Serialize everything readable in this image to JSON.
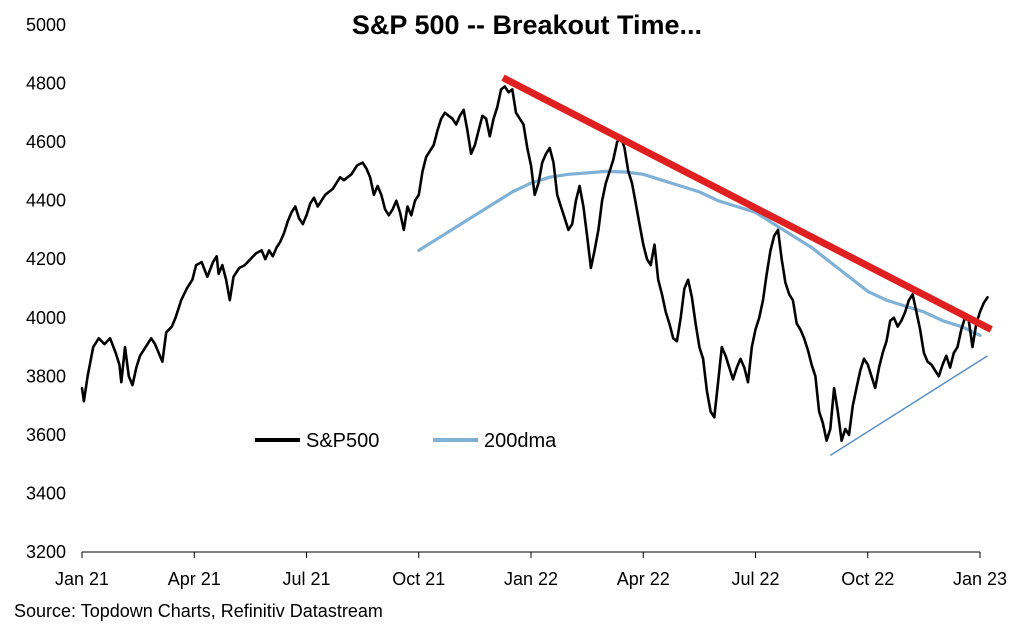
{
  "chart_data": {
    "type": "line",
    "title": "S&P 500 -- Breakout Time...",
    "source": "Source: Topdown Charts, Refinitiv Datastream",
    "ylim": [
      3200,
      5000
    ],
    "y_ticks": [
      3200,
      3400,
      3600,
      3800,
      4000,
      4200,
      4400,
      4600,
      4800,
      5000
    ],
    "x_ticks": [
      {
        "label": "Jan 21",
        "x": 0
      },
      {
        "label": "Apr 21",
        "x": 3
      },
      {
        "label": "Jul 21",
        "x": 6
      },
      {
        "label": "Oct 21",
        "x": 9
      },
      {
        "label": "Jan 22",
        "x": 12
      },
      {
        "label": "Apr 22",
        "x": 15
      },
      {
        "label": "Jul 22",
        "x": 18
      },
      {
        "label": "Oct 22",
        "x": 21
      },
      {
        "label": "Jan 23",
        "x": 24
      }
    ],
    "xlim": [
      0,
      24
    ],
    "legend": {
      "placement": "lower-left"
    },
    "series": [
      {
        "name": "S&P500",
        "color": "#000000",
        "points": [
          [
            0.0,
            3760
          ],
          [
            0.05,
            3715
          ],
          [
            0.15,
            3800
          ],
          [
            0.3,
            3900
          ],
          [
            0.45,
            3930
          ],
          [
            0.6,
            3910
          ],
          [
            0.75,
            3930
          ],
          [
            0.9,
            3880
          ],
          [
            1.0,
            3840
          ],
          [
            1.05,
            3780
          ],
          [
            1.15,
            3900
          ],
          [
            1.25,
            3800
          ],
          [
            1.35,
            3770
          ],
          [
            1.45,
            3830
          ],
          [
            1.55,
            3870
          ],
          [
            1.7,
            3900
          ],
          [
            1.85,
            3930
          ],
          [
            1.95,
            3910
          ],
          [
            2.05,
            3880
          ],
          [
            2.15,
            3850
          ],
          [
            2.25,
            3950
          ],
          [
            2.4,
            3970
          ],
          [
            2.5,
            4000
          ],
          [
            2.65,
            4060
          ],
          [
            2.8,
            4100
          ],
          [
            2.95,
            4130
          ],
          [
            3.05,
            4180
          ],
          [
            3.2,
            4190
          ],
          [
            3.35,
            4140
          ],
          [
            3.5,
            4190
          ],
          [
            3.6,
            4210
          ],
          [
            3.65,
            4150
          ],
          [
            3.75,
            4180
          ],
          [
            3.85,
            4130
          ],
          [
            3.95,
            4060
          ],
          [
            4.05,
            4140
          ],
          [
            4.2,
            4170
          ],
          [
            4.35,
            4180
          ],
          [
            4.5,
            4200
          ],
          [
            4.65,
            4220
          ],
          [
            4.8,
            4230
          ],
          [
            4.9,
            4200
          ],
          [
            5.0,
            4230
          ],
          [
            5.1,
            4210
          ],
          [
            5.2,
            4240
          ],
          [
            5.3,
            4260
          ],
          [
            5.4,
            4290
          ],
          [
            5.5,
            4330
          ],
          [
            5.6,
            4360
          ],
          [
            5.7,
            4380
          ],
          [
            5.8,
            4340
          ],
          [
            5.9,
            4320
          ],
          [
            6.0,
            4350
          ],
          [
            6.1,
            4390
          ],
          [
            6.2,
            4410
          ],
          [
            6.3,
            4380
          ],
          [
            6.4,
            4400
          ],
          [
            6.5,
            4420
          ],
          [
            6.6,
            4430
          ],
          [
            6.7,
            4440
          ],
          [
            6.8,
            4460
          ],
          [
            6.9,
            4480
          ],
          [
            7.0,
            4470
          ],
          [
            7.1,
            4480
          ],
          [
            7.2,
            4490
          ],
          [
            7.35,
            4520
          ],
          [
            7.5,
            4530
          ],
          [
            7.6,
            4510
          ],
          [
            7.7,
            4480
          ],
          [
            7.8,
            4420
          ],
          [
            7.9,
            4450
          ],
          [
            8.0,
            4420
          ],
          [
            8.1,
            4370
          ],
          [
            8.2,
            4350
          ],
          [
            8.3,
            4370
          ],
          [
            8.4,
            4400
          ],
          [
            8.5,
            4360
          ],
          [
            8.6,
            4300
          ],
          [
            8.7,
            4380
          ],
          [
            8.8,
            4350
          ],
          [
            8.9,
            4400
          ],
          [
            9.0,
            4420
          ],
          [
            9.1,
            4500
          ],
          [
            9.2,
            4550
          ],
          [
            9.3,
            4570
          ],
          [
            9.4,
            4590
          ],
          [
            9.5,
            4640
          ],
          [
            9.6,
            4680
          ],
          [
            9.7,
            4700
          ],
          [
            9.8,
            4690
          ],
          [
            9.9,
            4680
          ],
          [
            10.0,
            4660
          ],
          [
            10.1,
            4690
          ],
          [
            10.2,
            4710
          ],
          [
            10.3,
            4640
          ],
          [
            10.4,
            4560
          ],
          [
            10.5,
            4590
          ],
          [
            10.6,
            4640
          ],
          [
            10.7,
            4690
          ],
          [
            10.8,
            4680
          ],
          [
            10.9,
            4620
          ],
          [
            11.0,
            4680
          ],
          [
            11.1,
            4720
          ],
          [
            11.2,
            4780
          ],
          [
            11.3,
            4790
          ],
          [
            11.4,
            4770
          ],
          [
            11.5,
            4780
          ],
          [
            11.6,
            4700
          ],
          [
            11.7,
            4680
          ],
          [
            11.8,
            4660
          ],
          [
            11.9,
            4580
          ],
          [
            12.0,
            4520
          ],
          [
            12.1,
            4420
          ],
          [
            12.2,
            4460
          ],
          [
            12.3,
            4530
          ],
          [
            12.4,
            4560
          ],
          [
            12.5,
            4580
          ],
          [
            12.6,
            4530
          ],
          [
            12.7,
            4420
          ],
          [
            12.8,
            4380
          ],
          [
            12.9,
            4340
          ],
          [
            13.0,
            4300
          ],
          [
            13.1,
            4320
          ],
          [
            13.2,
            4400
          ],
          [
            13.3,
            4450
          ],
          [
            13.4,
            4380
          ],
          [
            13.5,
            4280
          ],
          [
            13.6,
            4170
          ],
          [
            13.7,
            4230
          ],
          [
            13.8,
            4300
          ],
          [
            13.9,
            4400
          ],
          [
            14.0,
            4460
          ],
          [
            14.1,
            4500
          ],
          [
            14.2,
            4540
          ],
          [
            14.3,
            4600
          ],
          [
            14.4,
            4620
          ],
          [
            14.5,
            4580
          ],
          [
            14.6,
            4500
          ],
          [
            14.7,
            4460
          ],
          [
            14.8,
            4390
          ],
          [
            14.9,
            4320
          ],
          [
            15.0,
            4250
          ],
          [
            15.1,
            4200
          ],
          [
            15.2,
            4180
          ],
          [
            15.3,
            4250
          ],
          [
            15.4,
            4130
          ],
          [
            15.5,
            4080
          ],
          [
            15.6,
            4020
          ],
          [
            15.7,
            3980
          ],
          [
            15.8,
            3930
          ],
          [
            15.9,
            3920
          ],
          [
            16.0,
            4000
          ],
          [
            16.1,
            4100
          ],
          [
            16.2,
            4130
          ],
          [
            16.3,
            4070
          ],
          [
            16.4,
            3980
          ],
          [
            16.5,
            3900
          ],
          [
            16.6,
            3860
          ],
          [
            16.7,
            3750
          ],
          [
            16.8,
            3680
          ],
          [
            16.9,
            3660
          ],
          [
            17.0,
            3780
          ],
          [
            17.1,
            3900
          ],
          [
            17.2,
            3870
          ],
          [
            17.3,
            3830
          ],
          [
            17.4,
            3790
          ],
          [
            17.5,
            3830
          ],
          [
            17.6,
            3860
          ],
          [
            17.7,
            3830
          ],
          [
            17.8,
            3780
          ],
          [
            17.9,
            3900
          ],
          [
            18.0,
            3960
          ],
          [
            18.1,
            4000
          ],
          [
            18.2,
            4060
          ],
          [
            18.3,
            4150
          ],
          [
            18.4,
            4230
          ],
          [
            18.5,
            4280
          ],
          [
            18.6,
            4300
          ],
          [
            18.7,
            4200
          ],
          [
            18.8,
            4120
          ],
          [
            18.9,
            4080
          ],
          [
            19.0,
            4060
          ],
          [
            19.1,
            3980
          ],
          [
            19.2,
            3960
          ],
          [
            19.3,
            3930
          ],
          [
            19.4,
            3890
          ],
          [
            19.5,
            3840
          ],
          [
            19.6,
            3800
          ],
          [
            19.7,
            3680
          ],
          [
            19.8,
            3640
          ],
          [
            19.9,
            3580
          ],
          [
            20.0,
            3620
          ],
          [
            20.1,
            3760
          ],
          [
            20.2,
            3680
          ],
          [
            20.3,
            3580
          ],
          [
            20.4,
            3620
          ],
          [
            20.5,
            3600
          ],
          [
            20.6,
            3700
          ],
          [
            20.7,
            3760
          ],
          [
            20.8,
            3820
          ],
          [
            20.9,
            3860
          ],
          [
            21.0,
            3840
          ],
          [
            21.1,
            3800
          ],
          [
            21.2,
            3760
          ],
          [
            21.3,
            3830
          ],
          [
            21.4,
            3880
          ],
          [
            21.5,
            3920
          ],
          [
            21.6,
            3990
          ],
          [
            21.7,
            4000
          ],
          [
            21.8,
            3970
          ],
          [
            21.9,
            3990
          ],
          [
            22.0,
            4020
          ],
          [
            22.1,
            4060
          ],
          [
            22.2,
            4080
          ],
          [
            22.3,
            4020
          ],
          [
            22.4,
            3960
          ],
          [
            22.5,
            3880
          ],
          [
            22.6,
            3850
          ],
          [
            22.7,
            3840
          ],
          [
            22.8,
            3820
          ],
          [
            22.9,
            3800
          ],
          [
            23.0,
            3840
          ],
          [
            23.1,
            3870
          ],
          [
            23.2,
            3830
          ],
          [
            23.3,
            3880
          ],
          [
            23.4,
            3900
          ],
          [
            23.5,
            3960
          ],
          [
            23.6,
            4000
          ],
          [
            23.7,
            3990
          ],
          [
            23.8,
            3900
          ],
          [
            23.9,
            3980
          ],
          [
            24.0,
            4020
          ],
          [
            24.1,
            4050
          ],
          [
            24.2,
            4070
          ]
        ]
      },
      {
        "name": "200dma",
        "color": "#7fb0d6",
        "points": [
          [
            9.0,
            4230
          ],
          [
            9.5,
            4270
          ],
          [
            10.0,
            4310
          ],
          [
            10.5,
            4350
          ],
          [
            11.0,
            4390
          ],
          [
            11.5,
            4430
          ],
          [
            12.0,
            4460
          ],
          [
            12.5,
            4480
          ],
          [
            13.0,
            4490
          ],
          [
            13.5,
            4495
          ],
          [
            14.0,
            4500
          ],
          [
            14.5,
            4498
          ],
          [
            15.0,
            4490
          ],
          [
            15.5,
            4470
          ],
          [
            16.0,
            4450
          ],
          [
            16.5,
            4430
          ],
          [
            17.0,
            4400
          ],
          [
            17.5,
            4380
          ],
          [
            18.0,
            4360
          ],
          [
            18.5,
            4320
          ],
          [
            19.0,
            4280
          ],
          [
            19.5,
            4240
          ],
          [
            20.0,
            4190
          ],
          [
            20.5,
            4140
          ],
          [
            21.0,
            4090
          ],
          [
            21.5,
            4060
          ],
          [
            22.0,
            4040
          ],
          [
            22.5,
            4020
          ],
          [
            23.0,
            3990
          ],
          [
            23.5,
            3970
          ],
          [
            24.0,
            3940
          ]
        ]
      }
    ],
    "annotations": [
      {
        "kind": "resistance-trendline",
        "color": "#e02020",
        "from": [
          11.25,
          4820
        ],
        "to": [
          24.3,
          3960
        ]
      },
      {
        "kind": "support-trendline",
        "color": "#5b8fc6",
        "from": [
          20.0,
          3530
        ],
        "to": [
          24.2,
          3870
        ]
      }
    ]
  }
}
